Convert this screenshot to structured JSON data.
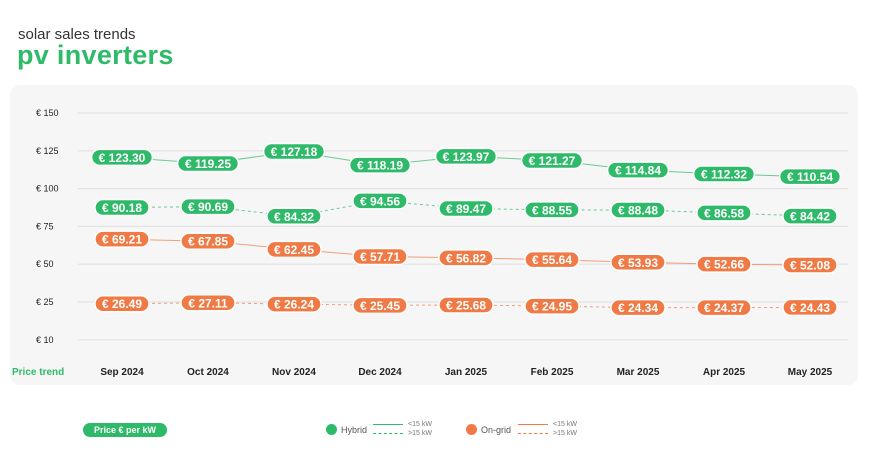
{
  "header": {
    "subtitle": "solar sales trends",
    "title": "pv inverters"
  },
  "chart_data": {
    "type": "line",
    "categories": [
      "Sep 2024",
      "Oct 2024",
      "Nov 2024",
      "Dec 2024",
      "Jan 2025",
      "Feb 2025",
      "Mar 2025",
      "Apr 2025",
      "May 2025"
    ],
    "xlabel": "Price trend",
    "ylabel": "Price € per kW",
    "yticks": [
      "€ 150",
      "€ 125",
      "€ 100",
      "€ 75",
      "€ 50",
      "€ 25",
      "€ 10"
    ],
    "ytick_values": [
      150,
      125,
      100,
      75,
      50,
      25,
      10
    ],
    "grid": true,
    "legend_placement": "bottom",
    "series": [
      {
        "name": "Hybrid <15 kW",
        "group": "Hybrid",
        "size": "<15 kW",
        "color": "#2fba6a",
        "dashed": false,
        "values": [
          123.3,
          119.25,
          127.18,
          118.19,
          123.97,
          121.27,
          114.84,
          112.32,
          110.54
        ]
      },
      {
        "name": "Hybrid >15 kW",
        "group": "Hybrid",
        "size": ">15 kW",
        "color": "#2fba6a",
        "dashed": true,
        "values": [
          90.18,
          90.69,
          84.32,
          94.56,
          89.47,
          88.55,
          88.48,
          86.58,
          84.42
        ]
      },
      {
        "name": "On-grid <15 kW",
        "group": "On-grid",
        "size": "<15 kW",
        "color": "#f07a45",
        "dashed": false,
        "values": [
          69.21,
          67.85,
          62.45,
          57.71,
          56.82,
          55.64,
          53.93,
          52.66,
          52.08
        ]
      },
      {
        "name": "On-grid >15 kW",
        "group": "On-grid",
        "size": ">15 kW",
        "color": "#f07a45",
        "dashed": true,
        "values": [
          26.49,
          27.11,
          26.24,
          25.45,
          25.68,
          24.95,
          24.34,
          24.37,
          24.43
        ]
      }
    ]
  },
  "legend": {
    "pill": "Price € per kW",
    "hybrid": "Hybrid",
    "ongrid": "On-grid",
    "lt": "<15 kW",
    "gt": ">15 kW",
    "green": "#2fba6a",
    "orange": "#f07a45"
  }
}
